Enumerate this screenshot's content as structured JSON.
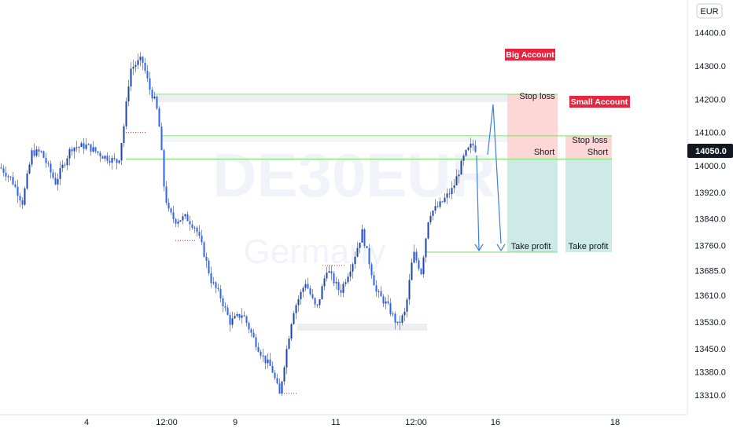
{
  "currency": "EUR",
  "last_price": "14050.0",
  "watermark": {
    "symbol": "DE30EUR",
    "region": "Germany"
  },
  "colors": {
    "up": "#1f44a8",
    "down": "#2962ff",
    "price_tag": "#131722",
    "level_line": "#7fdc6a",
    "stop_fill": "#fdd2d2",
    "target_fill": "#cdeae8",
    "badge": "#e8243f",
    "arrow": "#3d7fe0"
  },
  "annotations": {
    "big_account": "Big Account",
    "small_account": "Small Account",
    "stop_loss": "Stop loss",
    "short": "Short",
    "take_profit": "Take profit"
  },
  "chart_data": {
    "type": "candlestick",
    "ylim": [
      13260,
      14520
    ],
    "yticks": [
      "14400.0",
      "14300.0",
      "14200.0",
      "14100.0",
      "14000.0",
      "13920.0",
      "13840.0",
      "13760.0",
      "13685.0",
      "13610.0",
      "13530.0",
      "13450.0",
      "13380.0",
      "13310.0"
    ],
    "xticks": [
      "4",
      "12:00",
      "9",
      "11",
      "12:00",
      "16",
      "18"
    ],
    "levels": [
      {
        "name": "big-account-stop",
        "price": 14215
      },
      {
        "name": "small-account-stop",
        "price": 14090
      },
      {
        "name": "entry",
        "price": 14020
      },
      {
        "name": "target",
        "price": 13740
      }
    ],
    "positions": [
      {
        "account": "Big Account",
        "entry": 14020,
        "stop": 14215,
        "target": 13740
      },
      {
        "account": "Small Account",
        "entry": 14020,
        "stop": 14090,
        "target": 13740
      }
    ],
    "anchors": [
      [
        0,
        13995
      ],
      [
        14,
        13960
      ],
      [
        28,
        13890
      ],
      [
        40,
        14040
      ],
      [
        52,
        14040
      ],
      [
        70,
        13950
      ],
      [
        90,
        14055
      ],
      [
        110,
        14060
      ],
      [
        130,
        14030
      ],
      [
        150,
        14010
      ],
      [
        157,
        14120
      ],
      [
        165,
        14290
      ],
      [
        172,
        14305
      ],
      [
        180,
        14320
      ],
      [
        190,
        14230
      ],
      [
        198,
        14185
      ],
      [
        203,
        14100
      ],
      [
        208,
        13940
      ],
      [
        213,
        13865
      ],
      [
        222,
        13835
      ],
      [
        236,
        13845
      ],
      [
        248,
        13815
      ],
      [
        258,
        13745
      ],
      [
        268,
        13655
      ],
      [
        280,
        13605
      ],
      [
        292,
        13530
      ],
      [
        308,
        13555
      ],
      [
        322,
        13480
      ],
      [
        335,
        13420
      ],
      [
        345,
        13390
      ],
      [
        355,
        13310
      ],
      [
        362,
        13420
      ],
      [
        372,
        13560
      ],
      [
        388,
        13650
      ],
      [
        402,
        13565
      ],
      [
        415,
        13690
      ],
      [
        432,
        13620
      ],
      [
        448,
        13710
      ],
      [
        460,
        13800
      ],
      [
        468,
        13720
      ],
      [
        478,
        13620
      ],
      [
        492,
        13580
      ],
      [
        505,
        13520
      ],
      [
        515,
        13560
      ],
      [
        525,
        13740
      ],
      [
        535,
        13680
      ],
      [
        545,
        13855
      ],
      [
        558,
        13880
      ],
      [
        575,
        13930
      ],
      [
        590,
        14030
      ],
      [
        600,
        14065
      ],
      [
        606,
        14045
      ]
    ]
  }
}
